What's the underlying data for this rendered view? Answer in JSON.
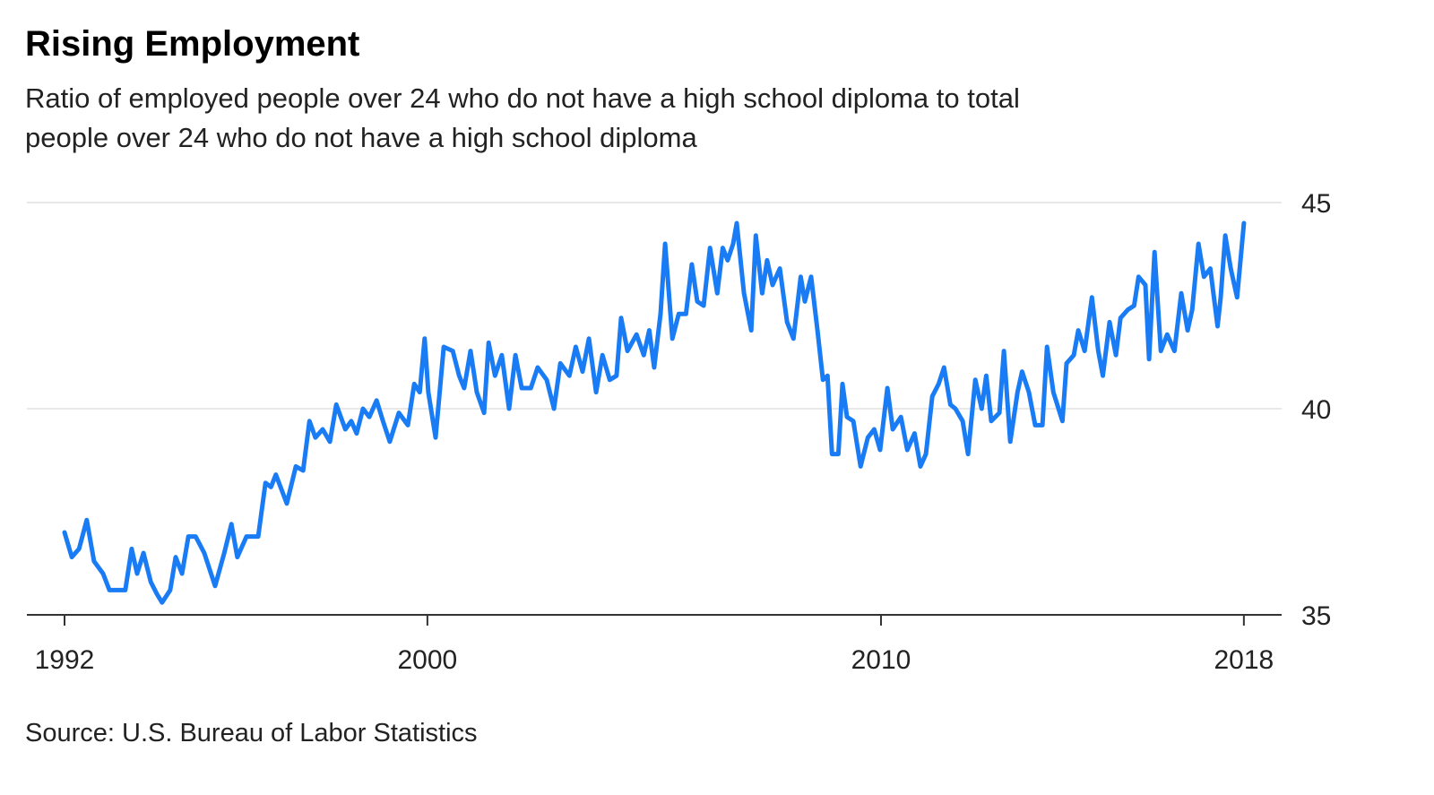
{
  "chart_data": {
    "type": "line",
    "title": "Rising Employment",
    "subtitle": [
      "Ratio of employed people over 24 who do not have a high school diploma to total",
      "people over 24 who do not have a high school diploma"
    ],
    "source": "Source: U.S. Bureau of Labor Statistics",
    "color": "#1a7cf5",
    "grid": true,
    "x": [
      1992.0,
      1992.16,
      1992.32,
      1992.49,
      1992.65,
      1992.85,
      1992.99,
      1993.25,
      1993.34,
      1993.48,
      1993.6,
      1993.74,
      1993.9,
      1994.04,
      1994.15,
      1994.33,
      1994.45,
      1994.59,
      1994.73,
      1994.89,
      1995.08,
      1995.32,
      1995.52,
      1995.68,
      1995.81,
      1996.01,
      1996.27,
      1996.43,
      1996.55,
      1996.66,
      1996.9,
      1997.1,
      1997.26,
      1997.4,
      1997.53,
      1997.69,
      1997.85,
      1997.99,
      1998.19,
      1998.32,
      1998.44,
      1998.58,
      1998.72,
      1998.88,
      1999.02,
      1999.17,
      1999.37,
      1999.57,
      1999.71,
      1999.83,
      1999.94,
      2000.02,
      2000.18,
      2000.36,
      2000.56,
      2000.7,
      2000.81,
      2000.95,
      2001.09,
      2001.25,
      2001.35,
      2001.49,
      2001.64,
      2001.8,
      2001.94,
      2002.08,
      2002.28,
      2002.43,
      2002.63,
      2002.79,
      2002.93,
      2003.13,
      2003.27,
      2003.42,
      2003.56,
      2003.72,
      2003.86,
      2004.02,
      2004.17,
      2004.27,
      2004.41,
      2004.61,
      2004.77,
      2004.89,
      2005.0,
      2005.14,
      2005.24,
      2005.4,
      2005.54,
      2005.7,
      2005.83,
      2005.95,
      2006.09,
      2006.23,
      2006.39,
      2006.51,
      2006.62,
      2006.74,
      2006.82,
      2006.98,
      2007.14,
      2007.24,
      2007.38,
      2007.49,
      2007.61,
      2007.77,
      2007.93,
      2008.07,
      2008.23,
      2008.32,
      2008.46,
      2008.6,
      2008.72,
      2008.82,
      2008.92,
      2009.06,
      2009.15,
      2009.25,
      2009.39,
      2009.55,
      2009.71,
      2009.85,
      2009.98,
      2010.14,
      2010.26,
      2010.44,
      2010.58,
      2010.74,
      2010.87,
      2010.99,
      2011.13,
      2011.27,
      2011.39,
      2011.53,
      2011.64,
      2011.8,
      2011.92,
      2012.08,
      2012.22,
      2012.32,
      2012.43,
      2012.61,
      2012.71,
      2012.85,
      2013.01,
      2013.11,
      2013.26,
      2013.4,
      2013.56,
      2013.66,
      2013.8,
      2014.0,
      2014.09,
      2014.25,
      2014.35,
      2014.49,
      2014.65,
      2014.79,
      2014.89,
      2015.04,
      2015.18,
      2015.28,
      2015.44,
      2015.58,
      2015.68,
      2015.83,
      2015.91,
      2016.03,
      2016.17,
      2016.31,
      2016.47,
      2016.62,
      2016.76,
      2016.86,
      2017.0,
      2017.12,
      2017.26,
      2017.42,
      2017.49,
      2017.59,
      2017.71,
      2017.85,
      2018.0
    ],
    "values": [
      37.0,
      36.4,
      36.6,
      37.3,
      36.3,
      36.0,
      35.6,
      35.6,
      35.6,
      36.6,
      36.0,
      36.5,
      35.8,
      35.5,
      35.3,
      35.6,
      36.4,
      36.0,
      36.9,
      36.9,
      36.5,
      35.7,
      36.5,
      37.2,
      36.4,
      36.9,
      36.9,
      38.2,
      38.1,
      38.4,
      37.7,
      38.6,
      38.5,
      39.7,
      39.3,
      39.5,
      39.2,
      40.1,
      39.5,
      39.7,
      39.4,
      40.0,
      39.8,
      40.2,
      39.7,
      39.2,
      39.9,
      39.6,
      40.6,
      40.4,
      41.7,
      40.4,
      39.3,
      41.5,
      41.4,
      40.8,
      40.5,
      41.4,
      40.4,
      39.9,
      41.6,
      40.8,
      41.3,
      40.0,
      41.3,
      40.5,
      40.5,
      41.0,
      40.7,
      40.0,
      41.1,
      40.8,
      41.5,
      40.9,
      41.7,
      40.4,
      41.3,
      40.7,
      40.8,
      42.2,
      41.4,
      41.8,
      41.3,
      41.9,
      41.0,
      42.3,
      44.0,
      41.7,
      42.3,
      42.3,
      43.5,
      42.6,
      42.5,
      43.9,
      42.8,
      43.9,
      43.6,
      44.0,
      44.5,
      42.8,
      41.9,
      44.2,
      42.8,
      43.6,
      43.0,
      43.4,
      42.1,
      41.7,
      43.2,
      42.6,
      43.2,
      41.9,
      40.7,
      40.8,
      38.9,
      38.9,
      40.6,
      39.8,
      39.7,
      38.6,
      39.3,
      39.5,
      39.0,
      40.5,
      39.5,
      39.8,
      39.0,
      39.4,
      38.6,
      38.9,
      40.3,
      40.6,
      41.0,
      40.1,
      40.0,
      39.7,
      38.9,
      40.7,
      40.0,
      40.8,
      39.7,
      39.9,
      41.4,
      39.2,
      40.4,
      40.9,
      40.4,
      39.6,
      39.6,
      41.5,
      40.4,
      39.7,
      41.1,
      41.3,
      41.9,
      41.4,
      42.7,
      41.4,
      40.8,
      42.1,
      41.3,
      42.2,
      42.4,
      42.5,
      43.2,
      43.0,
      41.2,
      43.8,
      41.4,
      41.8,
      41.4,
      42.8,
      41.9,
      42.4,
      44.0,
      43.2,
      43.4,
      42.0,
      42.7,
      44.2,
      43.4,
      42.7,
      44.5
    ],
    "xlim": [
      1991.17,
      2018.24
    ],
    "xticks": [
      1992,
      2000,
      2010,
      2018
    ],
    "ylim": [
      35,
      45
    ],
    "yticks": [
      35,
      40,
      45
    ]
  }
}
